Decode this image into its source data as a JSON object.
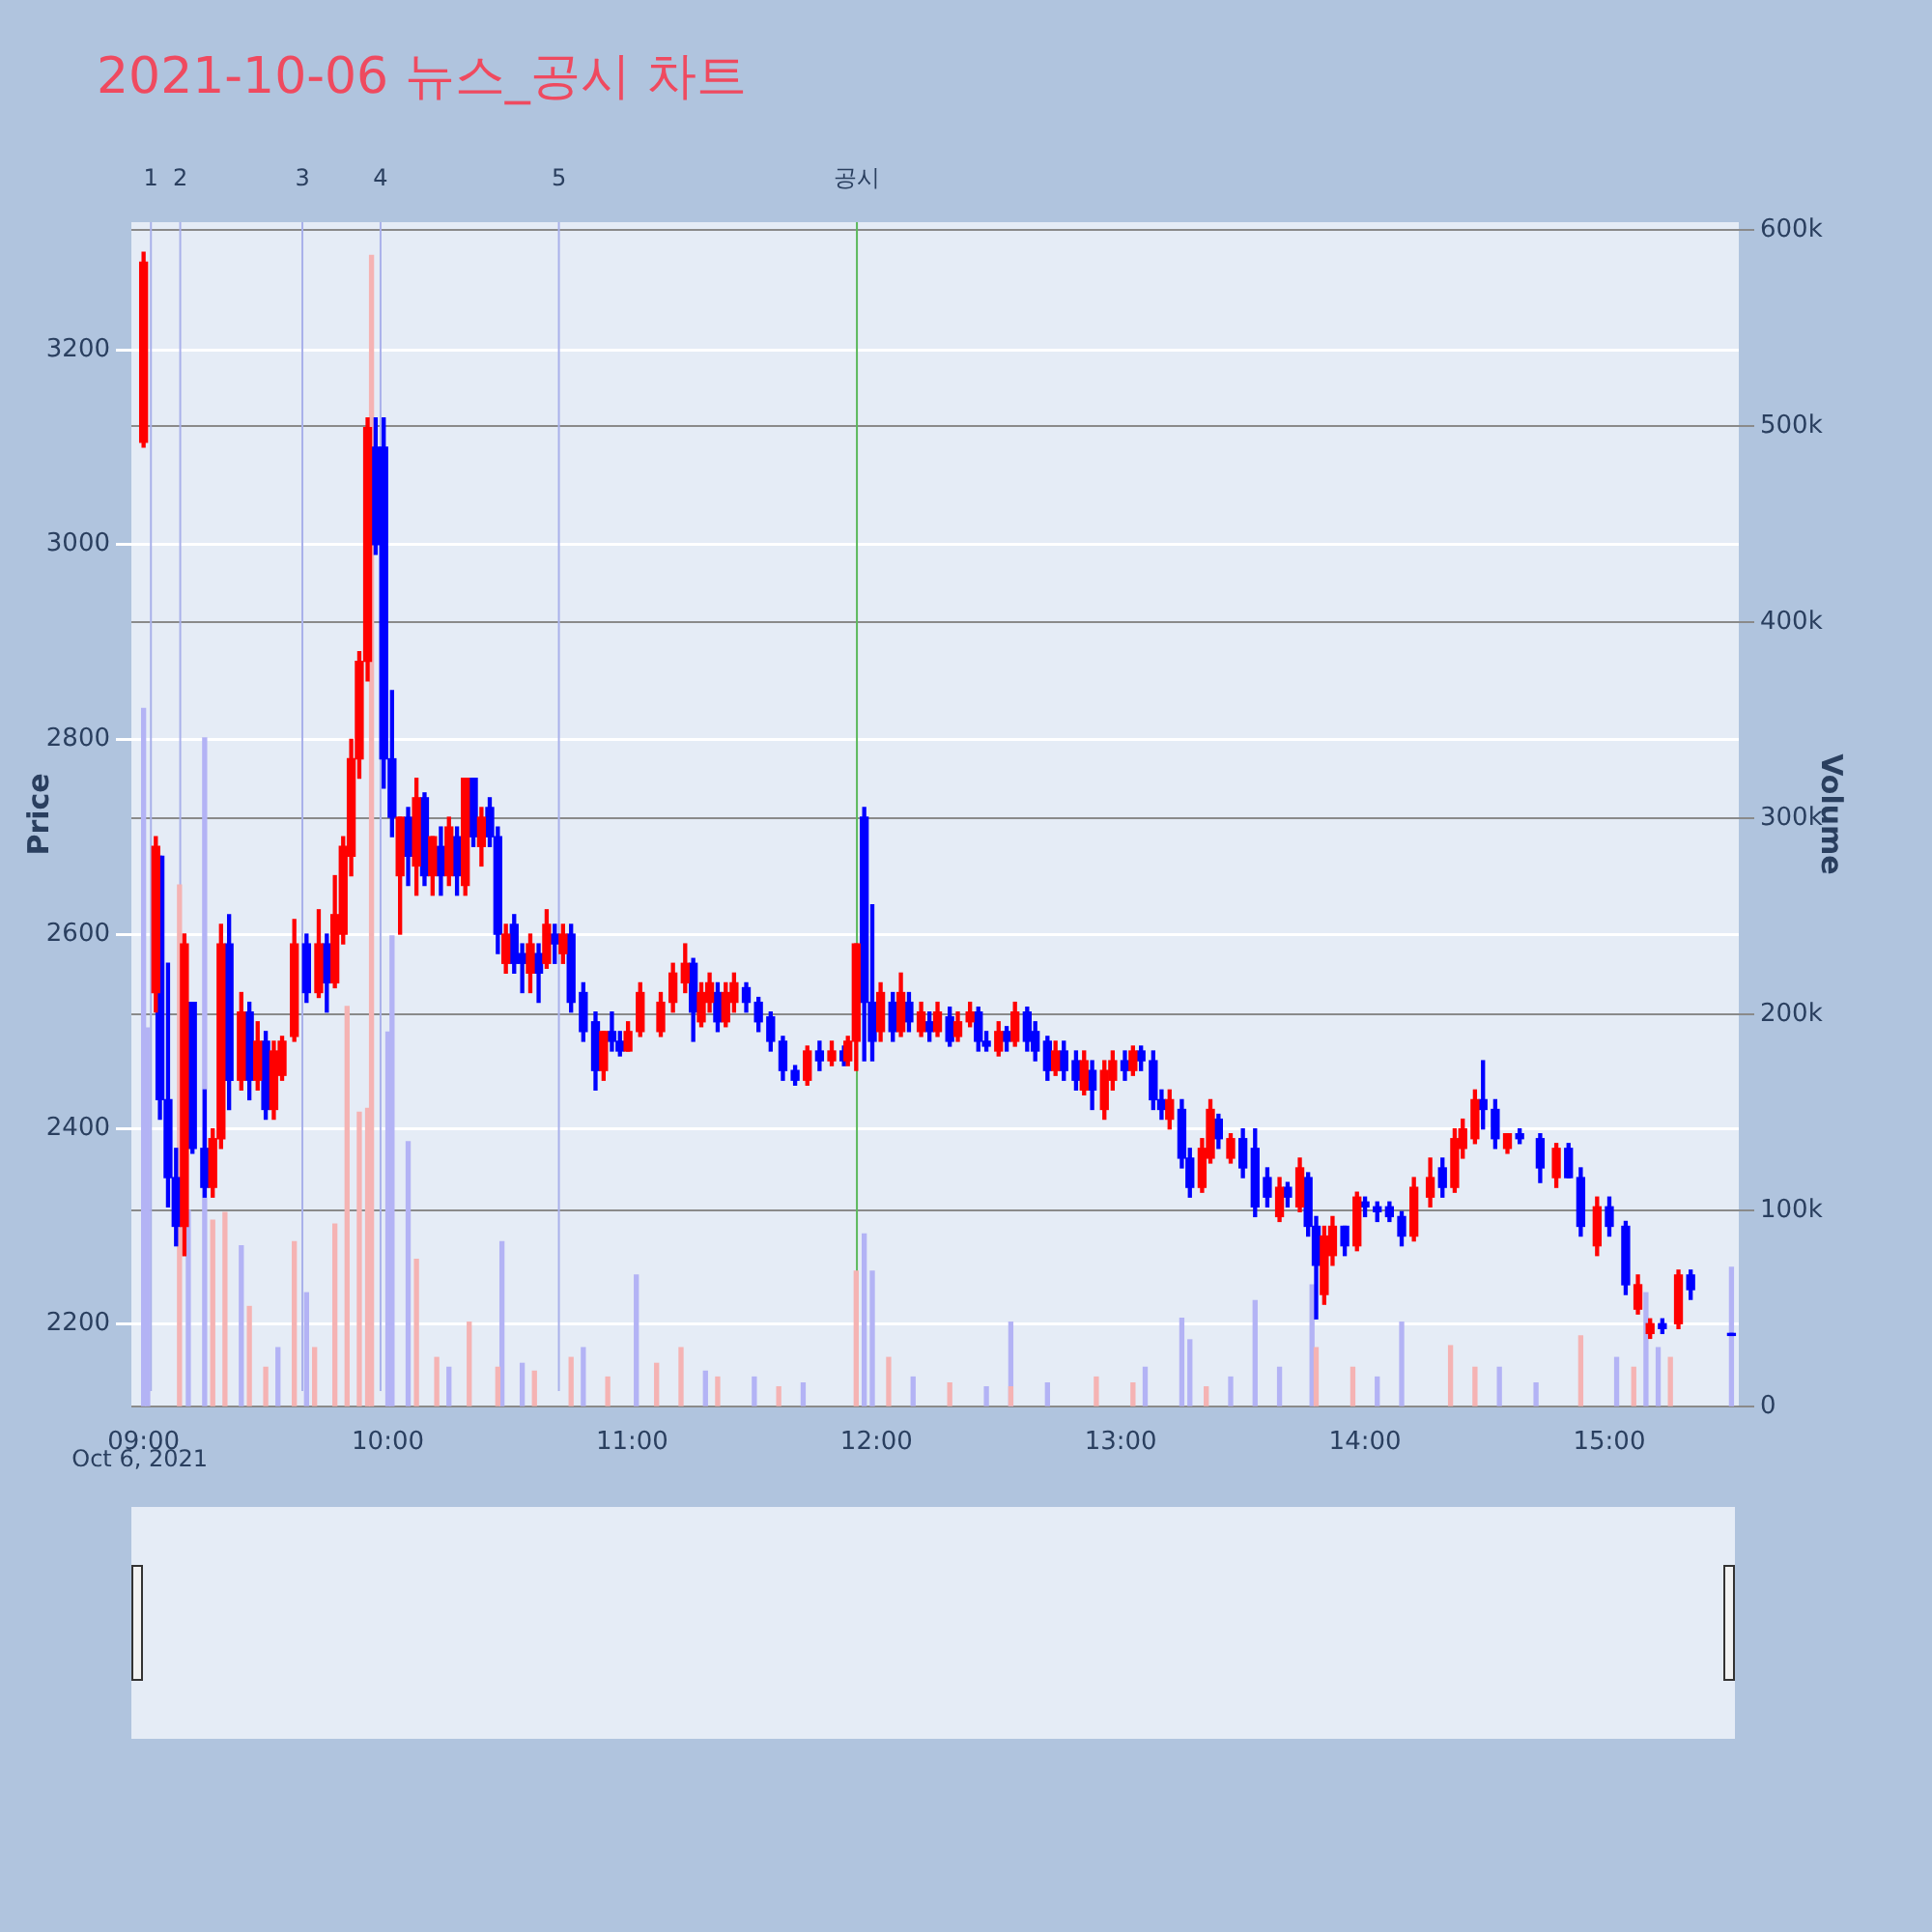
{
  "chart_data": {
    "type": "candlestick",
    "title": "2021-10-06 뉴스_공시 차트",
    "ylabel": "Price",
    "y2label": "Volume",
    "xlim": [
      8.95,
      15.53
    ],
    "xticks": [
      {
        "value": 9,
        "label": "09:00"
      },
      {
        "value": 10,
        "label": "10:00"
      },
      {
        "value": 11,
        "label": "11:00"
      },
      {
        "value": 12,
        "label": "12:00"
      },
      {
        "value": 13,
        "label": "13:00"
      },
      {
        "value": 14,
        "label": "14:00"
      },
      {
        "value": 15,
        "label": "15:00"
      }
    ],
    "ylim": [
      2115,
      3331
    ],
    "yticks": [
      2200,
      2400,
      2600,
      2800,
      3000,
      3200
    ],
    "y2lim": [
      0,
      604000
    ],
    "y2ticks": [
      {
        "value": 0,
        "label": "0"
      },
      {
        "value": 100000,
        "label": "100k"
      },
      {
        "value": 200000,
        "label": "200k"
      },
      {
        "value": 300000,
        "label": "300k"
      },
      {
        "value": 400000,
        "label": "400k"
      },
      {
        "value": 500000,
        "label": "500k"
      },
      {
        "value": 600000,
        "label": "600k"
      }
    ],
    "grid": "y",
    "legend": false,
    "annotations": [
      "Oct 6, 2021",
      "1",
      "2",
      "3",
      "4",
      "5",
      "공시"
    ],
    "ref_lines": [
      {
        "axis": "x",
        "value": 9.03,
        "color": "#a9b1ea"
      },
      {
        "axis": "x",
        "value": 9.15,
        "color": "#a9b1ea"
      },
      {
        "axis": "x",
        "value": 9.65,
        "color": "#a9b1ea"
      },
      {
        "axis": "x",
        "value": 9.97,
        "color": "#a9b1ea"
      },
      {
        "axis": "x",
        "value": 10.7,
        "color": "#a9b1ea"
      },
      {
        "axis": "x",
        "value": 11.92,
        "color": "#5cb85c"
      }
    ],
    "series": [
      {
        "color": "#ff0000",
        "x": [
          9.0,
          9.05,
          9.167,
          9.283,
          9.317,
          9.4,
          9.467,
          9.533,
          9.567,
          9.617,
          9.717,
          9.783,
          9.817,
          9.85,
          9.883,
          9.917,
          10.05,
          10.117,
          10.183,
          10.25,
          10.317,
          10.383,
          10.483,
          10.583,
          10.65,
          10.717,
          10.883,
          10.983,
          11.033,
          11.117,
          11.167,
          11.217,
          11.283,
          11.317,
          11.383,
          11.417,
          11.717,
          11.817,
          11.883,
          11.917,
          12.017,
          12.1,
          12.183,
          12.25,
          12.333,
          12.383,
          12.5,
          12.567,
          12.733,
          12.85,
          12.933,
          12.967,
          13.05,
          13.2,
          13.333,
          13.367,
          13.45,
          13.65,
          13.733,
          13.833,
          13.867,
          13.967,
          14.2,
          14.267,
          14.367,
          14.4,
          14.45,
          14.583,
          14.783,
          14.95,
          15.117,
          15.167,
          15.283
        ],
        "ohlc": [
          [
            3105,
            3300,
            3100,
            3290
          ],
          [
            2540,
            2700,
            2520,
            2690
          ],
          [
            2300,
            2600,
            2270,
            2590
          ],
          [
            2340,
            2400,
            2330,
            2390
          ],
          [
            2390,
            2610,
            2380,
            2590
          ],
          [
            2450,
            2540,
            2440,
            2520
          ],
          [
            2450,
            2510,
            2440,
            2490
          ],
          [
            2420,
            2490,
            2410,
            2480
          ],
          [
            2455,
            2495,
            2450,
            2490
          ],
          [
            2495,
            2615,
            2490,
            2590
          ],
          [
            2540,
            2625,
            2535,
            2590
          ],
          [
            2550,
            2660,
            2545,
            2620
          ],
          [
            2600,
            2700,
            2590,
            2690
          ],
          [
            2680,
            2800,
            2660,
            2780
          ],
          [
            2780,
            2890,
            2760,
            2880
          ],
          [
            2880,
            3130,
            2860,
            3120
          ],
          [
            2660,
            2720,
            2600,
            2720
          ],
          [
            2670,
            2760,
            2640,
            2740
          ],
          [
            2660,
            2700,
            2640,
            2700
          ],
          [
            2660,
            2720,
            2650,
            2710
          ],
          [
            2650,
            2760,
            2640,
            2760
          ],
          [
            2690,
            2730,
            2670,
            2720
          ],
          [
            2570,
            2610,
            2560,
            2600
          ],
          [
            2560,
            2600,
            2540,
            2590
          ],
          [
            2570,
            2625,
            2565,
            2610
          ],
          [
            2580,
            2610,
            2570,
            2600
          ],
          [
            2460,
            2500,
            2450,
            2500
          ],
          [
            2480,
            2510,
            2480,
            2500
          ],
          [
            2500,
            2550,
            2495,
            2540
          ],
          [
            2500,
            2540,
            2495,
            2530
          ],
          [
            2530,
            2570,
            2520,
            2560
          ],
          [
            2550,
            2590,
            2540,
            2570
          ],
          [
            2510,
            2550,
            2505,
            2540
          ],
          [
            2530,
            2560,
            2520,
            2550
          ],
          [
            2510,
            2550,
            2505,
            2540
          ],
          [
            2530,
            2560,
            2520,
            2550
          ],
          [
            2450,
            2485,
            2445,
            2480
          ],
          [
            2470,
            2490,
            2465,
            2480
          ],
          [
            2470,
            2495,
            2465,
            2490
          ],
          [
            2490,
            2590,
            2460,
            2590
          ],
          [
            2500,
            2550,
            2490,
            2540
          ],
          [
            2500,
            2560,
            2495,
            2540
          ],
          [
            2500,
            2530,
            2495,
            2520
          ],
          [
            2500,
            2530,
            2495,
            2520
          ],
          [
            2495,
            2520,
            2490,
            2510
          ],
          [
            2510,
            2530,
            2505,
            2520
          ],
          [
            2480,
            2510,
            2475,
            2500
          ],
          [
            2490,
            2530,
            2485,
            2520
          ],
          [
            2460,
            2490,
            2455,
            2480
          ],
          [
            2440,
            2480,
            2435,
            2470
          ],
          [
            2420,
            2470,
            2410,
            2460
          ],
          [
            2450,
            2480,
            2440,
            2470
          ],
          [
            2460,
            2485,
            2455,
            2480
          ],
          [
            2410,
            2440,
            2400,
            2430
          ],
          [
            2340,
            2390,
            2335,
            2380
          ],
          [
            2370,
            2430,
            2365,
            2420
          ],
          [
            2370,
            2395,
            2365,
            2390
          ],
          [
            2310,
            2350,
            2305,
            2340
          ],
          [
            2320,
            2370,
            2315,
            2360
          ],
          [
            2230,
            2300,
            2220,
            2290
          ],
          [
            2270,
            2310,
            2260,
            2300
          ],
          [
            2280,
            2335,
            2275,
            2330
          ],
          [
            2290,
            2350,
            2285,
            2340
          ],
          [
            2330,
            2370,
            2320,
            2350
          ],
          [
            2340,
            2400,
            2335,
            2390
          ],
          [
            2380,
            2410,
            2370,
            2400
          ],
          [
            2390,
            2440,
            2385,
            2430
          ],
          [
            2380,
            2395,
            2375,
            2395
          ],
          [
            2350,
            2385,
            2340,
            2380
          ],
          [
            2280,
            2330,
            2270,
            2320
          ],
          [
            2215,
            2250,
            2210,
            2240
          ],
          [
            2190,
            2205,
            2185,
            2200
          ],
          [
            2200,
            2255,
            2195,
            2250
          ]
        ]
      },
      {
        "color": "#0000ff",
        "x": [
          9.067,
          9.1,
          9.133,
          9.2,
          9.25,
          9.35,
          9.433,
          9.5,
          9.667,
          9.75,
          9.95,
          9.983,
          10.017,
          10.083,
          10.15,
          10.217,
          10.283,
          10.35,
          10.417,
          10.45,
          10.517,
          10.55,
          10.617,
          10.683,
          10.75,
          10.8,
          10.85,
          10.917,
          10.95,
          11.25,
          11.35,
          11.467,
          11.517,
          11.567,
          11.617,
          11.667,
          11.767,
          11.867,
          11.95,
          11.983,
          12.067,
          12.133,
          12.217,
          12.3,
          12.417,
          12.45,
          12.533,
          12.617,
          12.65,
          12.7,
          12.767,
          12.817,
          12.883,
          13.017,
          13.083,
          13.133,
          13.167,
          13.25,
          13.283,
          13.4,
          13.5,
          13.55,
          13.6,
          13.683,
          13.767,
          13.8,
          13.917,
          14.0,
          14.05,
          14.1,
          14.15,
          14.317,
          14.483,
          14.533,
          14.633,
          14.717,
          14.833,
          14.883,
          15.0,
          15.067,
          15.217,
          15.333,
          15.5
        ],
        "ohlc": [
          [
            2680,
            2680,
            2410,
            2430
          ],
          [
            2430,
            2570,
            2320,
            2350
          ],
          [
            2350,
            2380,
            2280,
            2300
          ],
          [
            2530,
            2530,
            2375,
            2380
          ],
          [
            2380,
            2440,
            2330,
            2340
          ],
          [
            2590,
            2620,
            2420,
            2450
          ],
          [
            2520,
            2530,
            2430,
            2450
          ],
          [
            2490,
            2500,
            2410,
            2420
          ],
          [
            2590,
            2600,
            2530,
            2540
          ],
          [
            2590,
            2600,
            2520,
            2550
          ],
          [
            3100,
            3130,
            2990,
            3000
          ],
          [
            3100,
            3130,
            2750,
            2780
          ],
          [
            2780,
            2850,
            2700,
            2720
          ],
          [
            2720,
            2730,
            2650,
            2680
          ],
          [
            2740,
            2745,
            2650,
            2660
          ],
          [
            2690,
            2710,
            2640,
            2660
          ],
          [
            2700,
            2710,
            2640,
            2660
          ],
          [
            2760,
            2760,
            2690,
            2700
          ],
          [
            2730,
            2740,
            2690,
            2700
          ],
          [
            2700,
            2710,
            2580,
            2600
          ],
          [
            2610,
            2620,
            2560,
            2570
          ],
          [
            2580,
            2590,
            2540,
            2570
          ],
          [
            2580,
            2590,
            2530,
            2560
          ],
          [
            2600,
            2610,
            2570,
            2590
          ],
          [
            2600,
            2610,
            2520,
            2530
          ],
          [
            2540,
            2550,
            2490,
            2500
          ],
          [
            2510,
            2520,
            2440,
            2460
          ],
          [
            2500,
            2520,
            2480,
            2490
          ],
          [
            2490,
            2500,
            2475,
            2480
          ],
          [
            2570,
            2575,
            2490,
            2520
          ],
          [
            2540,
            2550,
            2500,
            2510
          ],
          [
            2545,
            2550,
            2520,
            2530
          ],
          [
            2530,
            2535,
            2500,
            2510
          ],
          [
            2515,
            2520,
            2480,
            2490
          ],
          [
            2490,
            2495,
            2450,
            2460
          ],
          [
            2460,
            2465,
            2445,
            2450
          ],
          [
            2480,
            2490,
            2460,
            2470
          ],
          [
            2480,
            2485,
            2465,
            2470
          ],
          [
            2720,
            2730,
            2470,
            2530
          ],
          [
            2530,
            2630,
            2470,
            2490
          ],
          [
            2530,
            2540,
            2490,
            2500
          ],
          [
            2530,
            2540,
            2500,
            2510
          ],
          [
            2510,
            2520,
            2490,
            2500
          ],
          [
            2515,
            2525,
            2485,
            2490
          ],
          [
            2520,
            2525,
            2480,
            2490
          ],
          [
            2490,
            2500,
            2480,
            2485
          ],
          [
            2500,
            2505,
            2480,
            2490
          ],
          [
            2520,
            2525,
            2480,
            2490
          ],
          [
            2500,
            2510,
            2470,
            2480
          ],
          [
            2490,
            2495,
            2450,
            2460
          ],
          [
            2480,
            2490,
            2450,
            2460
          ],
          [
            2470,
            2480,
            2440,
            2450
          ],
          [
            2460,
            2470,
            2420,
            2440
          ],
          [
            2470,
            2480,
            2450,
            2460
          ],
          [
            2480,
            2485,
            2460,
            2470
          ],
          [
            2470,
            2480,
            2420,
            2430
          ],
          [
            2430,
            2440,
            2410,
            2420
          ],
          [
            2420,
            2430,
            2360,
            2370
          ],
          [
            2370,
            2380,
            2330,
            2340
          ],
          [
            2410,
            2415,
            2380,
            2390
          ],
          [
            2390,
            2400,
            2350,
            2360
          ],
          [
            2380,
            2400,
            2310,
            2320
          ],
          [
            2350,
            2360,
            2320,
            2330
          ],
          [
            2340,
            2345,
            2320,
            2330
          ],
          [
            2350,
            2355,
            2290,
            2300
          ],
          [
            2300,
            2310,
            2205,
            2260
          ],
          [
            2300,
            2300,
            2270,
            2280
          ],
          [
            2325,
            2330,
            2310,
            2320
          ],
          [
            2320,
            2325,
            2305,
            2315
          ],
          [
            2320,
            2325,
            2305,
            2310
          ],
          [
            2310,
            2315,
            2280,
            2290
          ],
          [
            2360,
            2370,
            2330,
            2340
          ],
          [
            2430,
            2470,
            2400,
            2420
          ],
          [
            2420,
            2430,
            2380,
            2390
          ],
          [
            2395,
            2400,
            2385,
            2390
          ],
          [
            2390,
            2395,
            2345,
            2360
          ],
          [
            2380,
            2385,
            2350,
            2350
          ],
          [
            2350,
            2360,
            2290,
            2300
          ],
          [
            2320,
            2330,
            2290,
            2300
          ],
          [
            2300,
            2305,
            2230,
            2240
          ],
          [
            2200,
            2205,
            2190,
            2195
          ],
          [
            2250,
            2255,
            2225,
            2235
          ],
          [
            2190,
            2190,
            2188,
            2188
          ]
        ]
      },
      {
        "type": "bar",
        "axis": "y2",
        "color": "#f5b3b3",
        "x": [
          9.147,
          9.283,
          9.333,
          9.433,
          9.5,
          9.617,
          9.7,
          9.783,
          9.833,
          9.883,
          9.917,
          9.933,
          10.117,
          10.2,
          10.333,
          10.45,
          10.6,
          10.75,
          10.9,
          11.1,
          11.2,
          11.35,
          11.6,
          11.917,
          12.05,
          12.3,
          12.55,
          12.9,
          13.05,
          13.35,
          13.8,
          13.95,
          14.35,
          14.45,
          14.883,
          15.1,
          15.25
        ],
        "values": [
          266000,
          95000,
          99000,
          51000,
          20000,
          84000,
          30000,
          93000,
          204000,
          150000,
          152000,
          587000,
          75000,
          25000,
          43000,
          20000,
          18000,
          25000,
          15000,
          22000,
          30000,
          15000,
          10000,
          69000,
          25000,
          12000,
          10000,
          15000,
          12000,
          10000,
          30000,
          20000,
          31000,
          20000,
          36000,
          20000,
          25000
        ]
      },
      {
        "type": "bar",
        "axis": "y2",
        "color": "#b3b3f5",
        "x": [
          9.0,
          9.017,
          9.183,
          9.25,
          9.4,
          9.55,
          9.667,
          10.0,
          10.017,
          10.083,
          10.25,
          10.467,
          10.55,
          10.8,
          11.017,
          11.3,
          11.5,
          11.7,
          11.95,
          11.983,
          12.15,
          12.45,
          12.55,
          12.7,
          13.1,
          13.25,
          13.283,
          13.45,
          13.55,
          13.65,
          13.783,
          14.05,
          14.15,
          14.55,
          14.7,
          15.03,
          15.15,
          15.2,
          15.5
        ],
        "values": [
          356000,
          193000,
          100000,
          341000,
          82000,
          30000,
          58000,
          191000,
          240000,
          135000,
          20000,
          84000,
          22000,
          30000,
          67000,
          18000,
          15000,
          12000,
          88000,
          69000,
          15000,
          10000,
          43000,
          12000,
          20000,
          45000,
          34000,
          15000,
          54000,
          20000,
          62000,
          15000,
          43000,
          20000,
          12000,
          25000,
          58000,
          30000,
          71000
        ]
      }
    ]
  }
}
